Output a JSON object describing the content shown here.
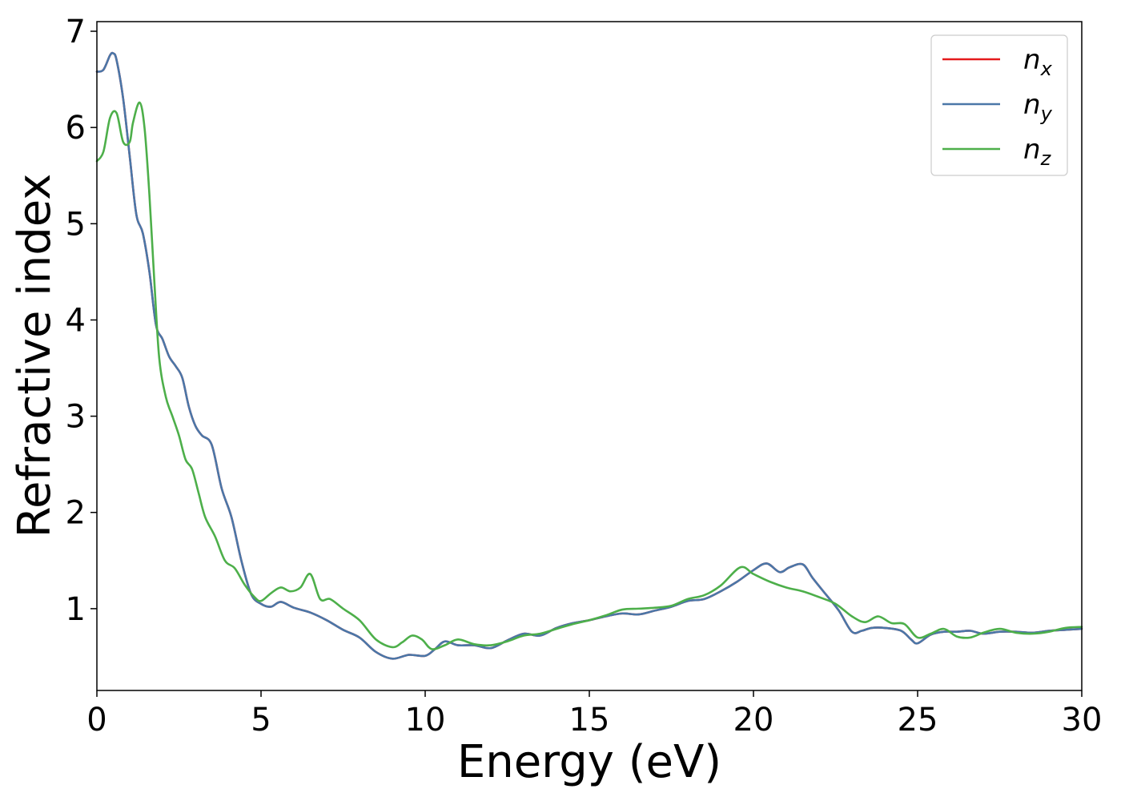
{
  "chart_data": {
    "type": "line",
    "title": "",
    "xlabel": "Energy (eV)",
    "ylabel": "Refractive index",
    "xlim": [
      0,
      30
    ],
    "ylim": [
      0.15,
      7.1
    ],
    "xticks": [
      0,
      5,
      10,
      15,
      20,
      25,
      30
    ],
    "yticks": [
      1,
      2,
      3,
      4,
      5,
      6,
      7
    ],
    "grid": false,
    "legend_position": "top-right",
    "series": [
      {
        "name": "n",
        "subscript": "x",
        "color": "#e41a1c",
        "x": [
          0,
          0.2,
          0.4,
          0.5,
          0.6,
          0.8,
          1.0,
          1.2,
          1.4,
          1.6,
          1.8,
          2.0,
          2.2,
          2.4,
          2.6,
          2.8,
          3.0,
          3.2,
          3.5,
          3.8,
          4.1,
          4.4,
          4.7,
          5.0,
          5.3,
          5.6,
          6.0,
          6.5,
          7.0,
          7.5,
          8.0,
          8.5,
          9.0,
          9.5,
          10.0,
          10.3,
          10.6,
          11.0,
          11.5,
          12.0,
          12.5,
          13.0,
          13.5,
          14.0,
          14.5,
          15.0,
          15.5,
          16.0,
          16.5,
          17.0,
          17.5,
          18.0,
          18.5,
          19.0,
          19.5,
          20.0,
          20.4,
          20.8,
          21.1,
          21.5,
          21.8,
          22.2,
          22.6,
          23.0,
          23.3,
          23.6,
          24.0,
          24.5,
          24.8,
          25.0,
          25.4,
          25.8,
          26.2,
          26.6,
          27.0,
          27.5,
          28.0,
          28.5,
          29.0,
          29.5,
          30.0
        ],
        "values": [
          6.58,
          6.6,
          6.75,
          6.77,
          6.7,
          6.3,
          5.7,
          5.1,
          4.9,
          4.5,
          3.95,
          3.8,
          3.62,
          3.52,
          3.4,
          3.1,
          2.9,
          2.8,
          2.7,
          2.25,
          1.95,
          1.5,
          1.15,
          1.05,
          1.02,
          1.07,
          1.01,
          0.96,
          0.88,
          0.78,
          0.7,
          0.55,
          0.48,
          0.52,
          0.51,
          0.58,
          0.66,
          0.62,
          0.62,
          0.59,
          0.67,
          0.74,
          0.72,
          0.8,
          0.85,
          0.88,
          0.92,
          0.95,
          0.94,
          0.98,
          1.02,
          1.08,
          1.1,
          1.18,
          1.28,
          1.4,
          1.47,
          1.38,
          1.43,
          1.46,
          1.32,
          1.15,
          0.98,
          0.76,
          0.77,
          0.8,
          0.8,
          0.77,
          0.68,
          0.64,
          0.73,
          0.76,
          0.76,
          0.77,
          0.74,
          0.76,
          0.76,
          0.75,
          0.77,
          0.78,
          0.79
        ]
      },
      {
        "name": "n",
        "subscript": "y",
        "color": "#4a77a8",
        "x": [
          0,
          0.2,
          0.4,
          0.5,
          0.6,
          0.8,
          1.0,
          1.2,
          1.4,
          1.6,
          1.8,
          2.0,
          2.2,
          2.4,
          2.6,
          2.8,
          3.0,
          3.2,
          3.5,
          3.8,
          4.1,
          4.4,
          4.7,
          5.0,
          5.3,
          5.6,
          6.0,
          6.5,
          7.0,
          7.5,
          8.0,
          8.5,
          9.0,
          9.5,
          10.0,
          10.3,
          10.6,
          11.0,
          11.5,
          12.0,
          12.5,
          13.0,
          13.5,
          14.0,
          14.5,
          15.0,
          15.5,
          16.0,
          16.5,
          17.0,
          17.5,
          18.0,
          18.5,
          19.0,
          19.5,
          20.0,
          20.4,
          20.8,
          21.1,
          21.5,
          21.8,
          22.2,
          22.6,
          23.0,
          23.3,
          23.6,
          24.0,
          24.5,
          24.8,
          25.0,
          25.4,
          25.8,
          26.2,
          26.6,
          27.0,
          27.5,
          28.0,
          28.5,
          29.0,
          29.5,
          30.0
        ],
        "values": [
          6.58,
          6.6,
          6.75,
          6.77,
          6.7,
          6.3,
          5.7,
          5.1,
          4.9,
          4.5,
          3.95,
          3.8,
          3.62,
          3.52,
          3.4,
          3.1,
          2.9,
          2.8,
          2.7,
          2.25,
          1.95,
          1.5,
          1.15,
          1.05,
          1.02,
          1.07,
          1.01,
          0.96,
          0.88,
          0.78,
          0.7,
          0.55,
          0.48,
          0.52,
          0.51,
          0.58,
          0.66,
          0.62,
          0.62,
          0.59,
          0.67,
          0.74,
          0.72,
          0.8,
          0.85,
          0.88,
          0.92,
          0.95,
          0.94,
          0.98,
          1.02,
          1.08,
          1.1,
          1.18,
          1.28,
          1.4,
          1.47,
          1.38,
          1.43,
          1.46,
          1.32,
          1.15,
          0.98,
          0.76,
          0.77,
          0.8,
          0.8,
          0.77,
          0.68,
          0.64,
          0.73,
          0.76,
          0.76,
          0.77,
          0.74,
          0.76,
          0.76,
          0.75,
          0.77,
          0.78,
          0.79
        ]
      },
      {
        "name": "n",
        "subscript": "z",
        "color": "#4daf4a",
        "x": [
          0,
          0.2,
          0.4,
          0.6,
          0.8,
          1.0,
          1.1,
          1.3,
          1.45,
          1.6,
          1.75,
          1.9,
          2.1,
          2.3,
          2.5,
          2.7,
          2.9,
          3.1,
          3.3,
          3.6,
          3.9,
          4.2,
          4.5,
          4.8,
          5.0,
          5.3,
          5.6,
          5.9,
          6.2,
          6.5,
          6.8,
          7.1,
          7.5,
          8.0,
          8.5,
          9.0,
          9.3,
          9.6,
          9.9,
          10.2,
          10.6,
          11.0,
          11.5,
          12.0,
          12.5,
          13.0,
          13.5,
          14.0,
          14.5,
          15.0,
          15.5,
          16.0,
          16.5,
          17.0,
          17.5,
          18.0,
          18.5,
          19.0,
          19.6,
          20.0,
          20.5,
          21.0,
          21.5,
          22.0,
          22.5,
          23.0,
          23.4,
          23.8,
          24.2,
          24.6,
          25.0,
          25.4,
          25.8,
          26.2,
          26.6,
          27.0,
          27.5,
          28.0,
          28.5,
          29.0,
          29.5,
          30.0
        ],
        "values": [
          5.65,
          5.75,
          6.1,
          6.15,
          5.85,
          5.85,
          6.05,
          6.26,
          6.0,
          5.3,
          4.4,
          3.6,
          3.2,
          3.0,
          2.8,
          2.55,
          2.45,
          2.2,
          1.95,
          1.75,
          1.5,
          1.42,
          1.25,
          1.12,
          1.08,
          1.16,
          1.22,
          1.18,
          1.22,
          1.36,
          1.1,
          1.1,
          1.0,
          0.88,
          0.68,
          0.6,
          0.65,
          0.72,
          0.68,
          0.58,
          0.62,
          0.68,
          0.63,
          0.62,
          0.66,
          0.72,
          0.74,
          0.79,
          0.84,
          0.88,
          0.93,
          0.99,
          1.0,
          1.01,
          1.03,
          1.1,
          1.14,
          1.24,
          1.43,
          1.36,
          1.28,
          1.22,
          1.18,
          1.12,
          1.05,
          0.92,
          0.86,
          0.92,
          0.85,
          0.84,
          0.7,
          0.74,
          0.79,
          0.71,
          0.7,
          0.75,
          0.79,
          0.75,
          0.74,
          0.76,
          0.8,
          0.81
        ]
      }
    ]
  }
}
